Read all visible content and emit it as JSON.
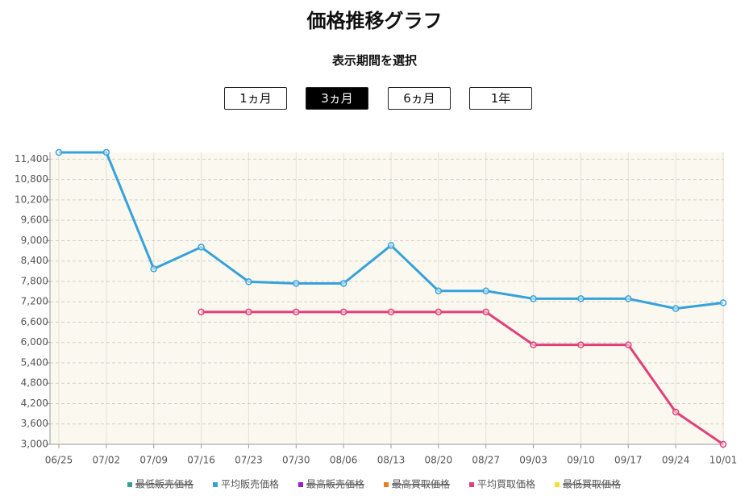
{
  "header": {
    "title": "価格推移グラフ",
    "subtitle": "表示期間を選択",
    "buttons": [
      {
        "label": "1ヵ月",
        "active": false
      },
      {
        "label": "3ヵ月",
        "active": true
      },
      {
        "label": "6ヵ月",
        "active": false
      },
      {
        "label": "1年",
        "active": false
      }
    ]
  },
  "chart_data": {
    "type": "line",
    "categories": [
      "06/25",
      "07/02",
      "07/09",
      "07/16",
      "07/23",
      "07/30",
      "08/06",
      "08/13",
      "08/20",
      "08/27",
      "09/03",
      "09/10",
      "09/17",
      "09/24",
      "10/01"
    ],
    "series": [
      {
        "name": "最低販売価格",
        "color": "#3a9e9a",
        "hidden": true,
        "values": [
          null,
          null,
          null,
          null,
          null,
          null,
          null,
          null,
          null,
          null,
          null,
          null,
          null,
          null,
          null
        ]
      },
      {
        "name": "平均販売価格",
        "color": "#36a2db",
        "hidden": false,
        "values": [
          11600,
          11600,
          8170,
          8810,
          7790,
          7740,
          7740,
          8860,
          7520,
          7520,
          7290,
          7290,
          7290,
          7000,
          7170
        ]
      },
      {
        "name": "最高販売価格",
        "color": "#9b1fc7",
        "hidden": true,
        "values": [
          null,
          null,
          null,
          null,
          null,
          null,
          null,
          null,
          null,
          null,
          null,
          null,
          null,
          null,
          null
        ]
      },
      {
        "name": "最高買取価格",
        "color": "#e67e22",
        "hidden": true,
        "values": [
          null,
          null,
          null,
          null,
          null,
          null,
          null,
          null,
          null,
          null,
          null,
          null,
          null,
          null,
          null
        ]
      },
      {
        "name": "平均買取価格",
        "color": "#e0407a",
        "hidden": false,
        "values": [
          null,
          null,
          null,
          6900,
          6900,
          6900,
          6900,
          6900,
          6900,
          6900,
          5930,
          5930,
          5930,
          3950,
          3000
        ]
      },
      {
        "name": "最低買取価格",
        "color": "#f0e130",
        "hidden": true,
        "values": [
          null,
          null,
          null,
          null,
          null,
          null,
          null,
          null,
          null,
          null,
          null,
          null,
          null,
          null,
          null
        ]
      }
    ],
    "ylim": [
      3000,
      11600
    ],
    "yticks": [
      {
        "value": 3000,
        "label": "3,000"
      },
      {
        "value": 3600,
        "label": "3,600"
      },
      {
        "value": 4200,
        "label": "4,200"
      },
      {
        "value": 4800,
        "label": "4,800"
      },
      {
        "value": 5400,
        "label": "5,400"
      },
      {
        "value": 6000,
        "label": "6,000"
      },
      {
        "value": 6600,
        "label": "6,600"
      },
      {
        "value": 7200,
        "label": "7,200"
      },
      {
        "value": 7800,
        "label": "7,800"
      },
      {
        "value": 8400,
        "label": "8,400"
      },
      {
        "value": 9000,
        "label": "9,000"
      },
      {
        "value": 9600,
        "label": "9,600"
      },
      {
        "value": 10200,
        "label": "10,200"
      },
      {
        "value": 10800,
        "label": "10,800"
      },
      {
        "value": 11400,
        "label": "11,400"
      }
    ],
    "grid": true,
    "legend": "bottom"
  }
}
